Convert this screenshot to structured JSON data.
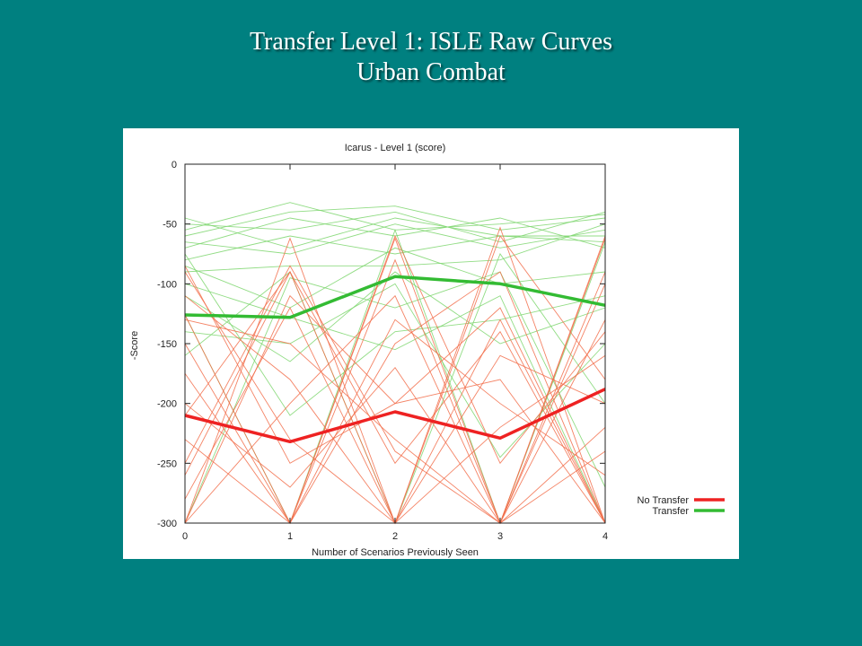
{
  "slide": {
    "title_line1": "Transfer Level 1: ISLE Raw Curves",
    "title_line2": "Urban Combat"
  },
  "chart_data": {
    "type": "line",
    "title": "Icarus - Level 1 (score)",
    "xlabel": "Number of Scenarios Previously Seen",
    "ylabel": "-Score",
    "x": [
      0,
      1,
      2,
      3,
      4
    ],
    "xlim": [
      0,
      4
    ],
    "ylim": [
      -300,
      0
    ],
    "x_ticks": [
      "0",
      "1",
      "2",
      "3",
      "4"
    ],
    "y_ticks": [
      "0",
      "-50",
      "-100",
      "-150",
      "-200",
      "-250",
      "-300"
    ],
    "legend_position": "bottom-right",
    "colors": {
      "no_transfer_main": "#ee2222",
      "transfer_main": "#33bb33",
      "no_transfer_raw": "#f26d4a",
      "transfer_raw": "#7ed66e"
    },
    "series": [
      {
        "name": "No Transfer",
        "values": [
          -210,
          -232,
          -207,
          -229,
          -188
        ]
      },
      {
        "name": "Transfer",
        "values": [
          -126,
          -128,
          -94,
          -100,
          -118
        ]
      }
    ],
    "raw_no_transfer": [
      [
        -300,
        -62,
        -300,
        -53,
        -300
      ],
      [
        -126,
        -300,
        -62,
        -300,
        -62
      ],
      [
        -210,
        -90,
        -300,
        -130,
        -300
      ],
      [
        -150,
        -300,
        -80,
        -300,
        -100
      ],
      [
        -250,
        -85,
        -240,
        -300,
        -60
      ],
      [
        -90,
        -230,
        -300,
        -160,
        -200
      ],
      [
        -300,
        -200,
        -110,
        -300,
        -130
      ],
      [
        -175,
        -300,
        -150,
        -90,
        -300
      ],
      [
        -300,
        -300,
        -130,
        -200,
        -260
      ],
      [
        -85,
        -250,
        -200,
        -120,
        -300
      ],
      [
        -280,
        -120,
        -300,
        -60,
        -180
      ],
      [
        -130,
        -150,
        -230,
        -300,
        -90
      ],
      [
        -230,
        -300,
        -60,
        -250,
        -140
      ],
      [
        -300,
        -110,
        -200,
        -180,
        -300
      ],
      [
        -200,
        -270,
        -170,
        -300,
        -220
      ],
      [
        -110,
        -180,
        -300,
        -220,
        -160
      ],
      [
        -260,
        -90,
        -250,
        -140,
        -300
      ],
      [
        -300,
        -300,
        -300,
        -300,
        -240
      ]
    ],
    "raw_transfer": [
      [
        -55,
        -32,
        -55,
        -50,
        -42
      ],
      [
        -60,
        -40,
        -35,
        -55,
        -45
      ],
      [
        -50,
        -55,
        -40,
        -65,
        -40
      ],
      [
        -70,
        -45,
        -60,
        -45,
        -70
      ],
      [
        -65,
        -75,
        -50,
        -70,
        -55
      ],
      [
        -80,
        -60,
        -75,
        -60,
        -65
      ],
      [
        -90,
        -85,
        -85,
        -80,
        -50
      ],
      [
        -126,
        -300,
        -55,
        -300,
        -65
      ],
      [
        -100,
        -128,
        -155,
        -110,
        -300
      ],
      [
        -140,
        -150,
        -100,
        -245,
        -150
      ],
      [
        -300,
        -95,
        -120,
        -90,
        -270
      ],
      [
        -75,
        -210,
        -140,
        -130,
        -110
      ],
      [
        -160,
        -90,
        -300,
        -75,
        -200
      ],
      [
        -110,
        -165,
        -90,
        -150,
        -120
      ],
      [
        -45,
        -70,
        -45,
        -60,
        -60
      ],
      [
        -85,
        -120,
        -70,
        -100,
        -90
      ]
    ]
  }
}
